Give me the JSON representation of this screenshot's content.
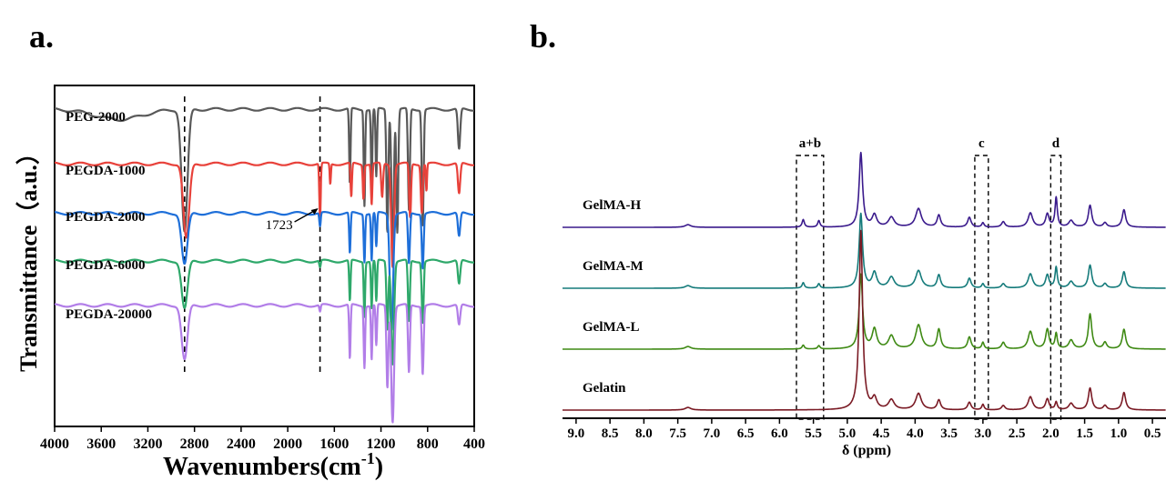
{
  "panels": [
    {
      "panel_label": "a.",
      "chart_data": {
        "type": "line",
        "title": "",
        "xlabel": "Wavenumbers(cm",
        "xlabel_sup": "-1",
        "xlabel_close": ")",
        "ylabel": "Transmittance（a.u.）",
        "xlim": [
          4000,
          400
        ],
        "x_reversed": true,
        "xticks": [
          4000,
          3600,
          3200,
          2800,
          2400,
          2000,
          1600,
          1200,
          800,
          400
        ],
        "y_tick_labels": false,
        "grid": false,
        "legend": "inline labels on left",
        "series": [
          {
            "name": "PEG-2000",
            "color": "#595959",
            "baseline": 0.93,
            "peaks": [
              [
                2885,
                0.36,
                25
              ],
              [
                1467,
                0.22,
                6
              ],
              [
                1342,
                0.28,
                6
              ],
              [
                1280,
                0.22,
                6
              ],
              [
                1240,
                0.2,
                6
              ],
              [
                1145,
                0.36,
                8
              ],
              [
                1100,
                0.42,
                10
              ],
              [
                1060,
                0.36,
                8
              ],
              [
                960,
                0.3,
                8
              ],
              [
                842,
                0.34,
                8
              ],
              [
                530,
                0.12,
                10
              ],
              [
                3450,
                0.03,
                200
              ]
            ]
          },
          {
            "name": "PEGDA-1000",
            "color": "#e8413a",
            "baseline": 0.77,
            "peaks": [
              [
                2870,
                0.22,
                25
              ],
              [
                1723,
                0.16,
                6
              ],
              [
                1635,
                0.06,
                5
              ],
              [
                1455,
                0.1,
                6
              ],
              [
                1350,
                0.1,
                6
              ],
              [
                1280,
                0.12,
                6
              ],
              [
                1190,
                0.1,
                8
              ],
              [
                1100,
                0.3,
                12
              ],
              [
                950,
                0.16,
                8
              ],
              [
                850,
                0.14,
                8
              ],
              [
                810,
                0.08,
                5
              ],
              [
                530,
                0.09,
                10
              ]
            ]
          },
          {
            "name": "PEGDA-2000",
            "color": "#1e6fd9",
            "baseline": 0.625,
            "peaks": [
              [
                2885,
                0.15,
                25
              ],
              [
                1723,
                0.04,
                6
              ],
              [
                1467,
                0.12,
                6
              ],
              [
                1342,
                0.14,
                6
              ],
              [
                1280,
                0.14,
                6
              ],
              [
                1240,
                0.1,
                6
              ],
              [
                1110,
                0.34,
                14
              ],
              [
                960,
                0.15,
                8
              ],
              [
                842,
                0.16,
                8
              ],
              [
                530,
                0.07,
                10
              ]
            ]
          },
          {
            "name": "PEGDA-6000",
            "color": "#2ea86a",
            "baseline": 0.485,
            "peaks": [
              [
                2885,
                0.14,
                25
              ],
              [
                1723,
                0.02,
                6
              ],
              [
                1467,
                0.12,
                6
              ],
              [
                1342,
                0.16,
                6
              ],
              [
                1280,
                0.14,
                6
              ],
              [
                1240,
                0.12,
                6
              ],
              [
                1145,
                0.2,
                8
              ],
              [
                1100,
                0.3,
                12
              ],
              [
                960,
                0.18,
                8
              ],
              [
                842,
                0.18,
                8
              ],
              [
                530,
                0.07,
                10
              ]
            ]
          },
          {
            "name": "PEGDA-20000",
            "color": "#b27ee8",
            "baseline": 0.355,
            "peaks": [
              [
                2885,
                0.16,
                25
              ],
              [
                1723,
                0.02,
                6
              ],
              [
                1467,
                0.16,
                6
              ],
              [
                1342,
                0.18,
                6
              ],
              [
                1280,
                0.16,
                6
              ],
              [
                1240,
                0.12,
                6
              ],
              [
                1145,
                0.24,
                8
              ],
              [
                1100,
                0.34,
                12
              ],
              [
                960,
                0.2,
                8
              ],
              [
                842,
                0.2,
                8
              ],
              [
                530,
                0.06,
                10
              ]
            ]
          }
        ],
        "reference_lines": [
          2885,
          1723
        ],
        "annotations": [
          {
            "text": "1723",
            "x": 1723,
            "series": "PEGDA-2000"
          }
        ]
      }
    },
    {
      "panel_label": "b.",
      "chart_data": {
        "type": "line",
        "title": "",
        "xlabel": "δ (ppm)",
        "ylabel": "",
        "xlim": [
          9.2,
          0.3
        ],
        "x_reversed": true,
        "xticks": [
          "9.0",
          "8.5",
          "8.0",
          "7.5",
          "7.0",
          "6.5",
          "6.0",
          "5.5",
          "5.0",
          "4.5",
          "4.0",
          "3.5",
          "3.0",
          "2.5",
          "2.0",
          "1.5",
          "1.0",
          "0.5"
        ],
        "y_tick_labels": false,
        "grid": false,
        "legend": "inline labels on left",
        "series": [
          {
            "name": "GelMA-H",
            "color": "#3a1a8c",
            "offset": 3,
            "peaks": [
              [
                4.8,
                3.4,
                0.03
              ],
              [
                5.65,
                0.35,
                0.02
              ],
              [
                5.42,
                0.3,
                0.02
              ],
              [
                4.6,
                0.55,
                0.04
              ],
              [
                4.35,
                0.45,
                0.05
              ],
              [
                3.95,
                0.85,
                0.05
              ],
              [
                3.65,
                0.55,
                0.03
              ],
              [
                3.2,
                0.45,
                0.03
              ],
              [
                3.0,
                0.2,
                0.02
              ],
              [
                2.7,
                0.25,
                0.03
              ],
              [
                2.3,
                0.65,
                0.04
              ],
              [
                2.05,
                0.6,
                0.03
              ],
              [
                1.92,
                1.35,
                0.02
              ],
              [
                1.7,
                0.3,
                0.04
              ],
              [
                1.42,
                1.0,
                0.03
              ],
              [
                1.2,
                0.2,
                0.03
              ],
              [
                0.92,
                0.8,
                0.03
              ],
              [
                7.35,
                0.12,
                0.05
              ]
            ]
          },
          {
            "name": "GelMA-M",
            "color": "#157b7b",
            "offset": 2,
            "peaks": [
              [
                4.8,
                3.4,
                0.03
              ],
              [
                5.65,
                0.25,
                0.02
              ],
              [
                5.42,
                0.2,
                0.02
              ],
              [
                4.6,
                0.7,
                0.04
              ],
              [
                4.35,
                0.5,
                0.05
              ],
              [
                3.95,
                0.8,
                0.05
              ],
              [
                3.65,
                0.6,
                0.03
              ],
              [
                3.2,
                0.45,
                0.03
              ],
              [
                3.0,
                0.2,
                0.02
              ],
              [
                2.7,
                0.2,
                0.03
              ],
              [
                2.3,
                0.65,
                0.04
              ],
              [
                2.05,
                0.6,
                0.03
              ],
              [
                1.92,
                0.95,
                0.02
              ],
              [
                1.7,
                0.3,
                0.04
              ],
              [
                1.42,
                1.05,
                0.03
              ],
              [
                1.2,
                0.2,
                0.03
              ],
              [
                0.92,
                0.75,
                0.03
              ],
              [
                7.35,
                0.12,
                0.05
              ]
            ]
          },
          {
            "name": "GelMA-L",
            "color": "#3f8a14",
            "offset": 1,
            "peaks": [
              [
                4.8,
                3.4,
                0.03
              ],
              [
                5.65,
                0.18,
                0.02
              ],
              [
                5.42,
                0.15,
                0.02
              ],
              [
                4.6,
                0.9,
                0.04
              ],
              [
                4.35,
                0.6,
                0.05
              ],
              [
                3.95,
                1.1,
                0.05
              ],
              [
                3.65,
                0.9,
                0.03
              ],
              [
                3.2,
                0.55,
                0.03
              ],
              [
                3.0,
                0.3,
                0.02
              ],
              [
                2.7,
                0.3,
                0.03
              ],
              [
                2.3,
                0.8,
                0.04
              ],
              [
                2.05,
                0.9,
                0.03
              ],
              [
                1.92,
                0.7,
                0.02
              ],
              [
                1.7,
                0.4,
                0.04
              ],
              [
                1.42,
                1.6,
                0.03
              ],
              [
                1.2,
                0.3,
                0.03
              ],
              [
                0.92,
                0.9,
                0.03
              ],
              [
                7.35,
                0.12,
                0.05
              ]
            ]
          },
          {
            "name": "Gelatin",
            "color": "#7a1a24",
            "offset": 0,
            "peaks": [
              [
                4.8,
                8.2,
                0.03
              ],
              [
                4.6,
                0.5,
                0.04
              ],
              [
                4.35,
                0.45,
                0.05
              ],
              [
                3.95,
                0.75,
                0.05
              ],
              [
                3.65,
                0.45,
                0.03
              ],
              [
                3.2,
                0.35,
                0.03
              ],
              [
                3.0,
                0.25,
                0.02
              ],
              [
                2.7,
                0.2,
                0.03
              ],
              [
                2.3,
                0.6,
                0.04
              ],
              [
                2.05,
                0.5,
                0.03
              ],
              [
                1.92,
                0.35,
                0.02
              ],
              [
                1.7,
                0.3,
                0.04
              ],
              [
                1.42,
                1.0,
                0.03
              ],
              [
                1.2,
                0.2,
                0.03
              ],
              [
                0.92,
                0.8,
                0.03
              ],
              [
                7.35,
                0.12,
                0.05
              ]
            ]
          }
        ],
        "region_labels": [
          {
            "text": "a+b",
            "from": 5.75,
            "to": 5.35
          },
          {
            "text": "c",
            "from": 3.12,
            "to": 2.92
          },
          {
            "text": "d",
            "from": 2.0,
            "to": 1.85
          }
        ]
      }
    }
  ]
}
